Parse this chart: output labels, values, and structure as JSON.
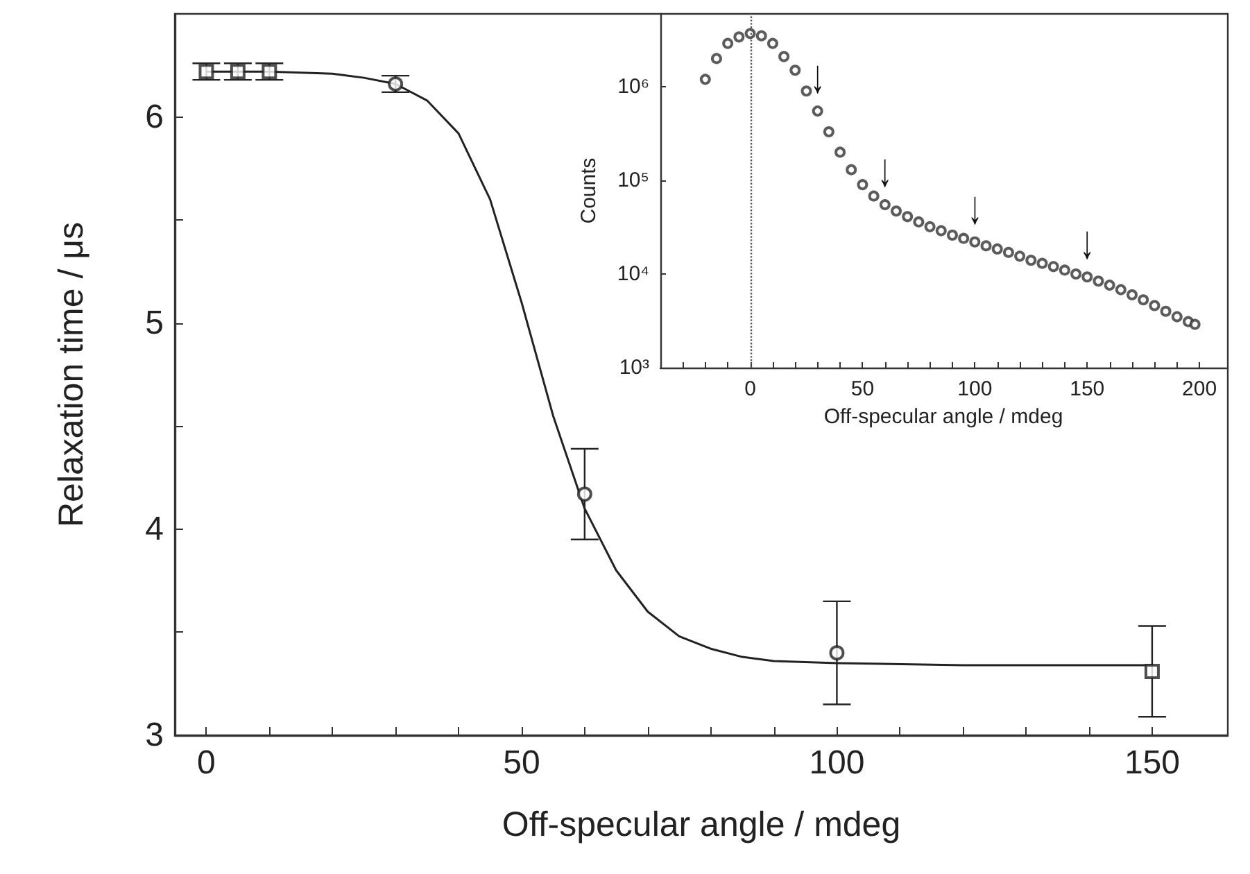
{
  "chart_data": [
    {
      "type": "scatter",
      "xlabel": "Off-specular angle / mdeg",
      "ylabel": "Relaxation time / μs",
      "xlim": [
        -5,
        162
      ],
      "ylim": [
        3,
        6.5
      ],
      "grid": false,
      "xticks": [
        0,
        {
          "value": 10,
          "label": null
        },
        {
          "value": 20,
          "label": null
        },
        {
          "value": 30,
          "label": null
        },
        {
          "value": 40,
          "label": null
        },
        50,
        {
          "value": 60,
          "label": null
        },
        {
          "value": 70,
          "label": null
        },
        {
          "value": 80,
          "label": null
        },
        {
          "value": 90,
          "label": null
        },
        100,
        {
          "value": 110,
          "label": null
        },
        {
          "value": 120,
          "label": null
        },
        {
          "value": 130,
          "label": null
        },
        {
          "value": 140,
          "label": null
        },
        150
      ],
      "yticks": [
        3,
        {
          "value": 3.5,
          "label": null
        },
        4,
        {
          "value": 4.5,
          "label": null
        },
        5,
        {
          "value": 5.5,
          "label": null
        },
        6
      ],
      "series": [
        {
          "x": [
            0,
            5,
            10,
            150
          ],
          "values": [
            6.22,
            6.22,
            6.22,
            3.31
          ],
          "errors": [
            0.04,
            0.04,
            0.04,
            0.22
          ],
          "marker": "square",
          "color": "#222222"
        },
        {
          "x": [
            30,
            60,
            100
          ],
          "values": [
            6.16,
            4.17,
            3.4
          ],
          "errors": [
            0.04,
            0.22,
            0.25
          ],
          "marker": "circle",
          "color": "#222222"
        },
        {
          "type": "line",
          "x": [
            0,
            10,
            20,
            25,
            30,
            35,
            40,
            45,
            50,
            55,
            60,
            65,
            70,
            75,
            80,
            85,
            90,
            100,
            120,
            150
          ],
          "values": [
            6.22,
            6.22,
            6.21,
            6.19,
            6.16,
            6.08,
            5.92,
            5.6,
            5.1,
            4.55,
            4.1,
            3.8,
            3.6,
            3.48,
            3.42,
            3.38,
            3.36,
            3.35,
            3.34,
            3.34
          ],
          "marker": "none",
          "line_style": "solid",
          "color": "#222222"
        }
      ]
    },
    {
      "type": "scatter",
      "xlabel": "Off-specular angle / mdeg",
      "ylabel": "Counts",
      "log": "y",
      "xlim": [
        -40,
        212
      ],
      "ylim": [
        1000,
        6000000
      ],
      "grid": false,
      "marker": "circle",
      "xticks": [
        {
          "value": -30,
          "label": null
        },
        {
          "value": -20,
          "label": null
        },
        {
          "value": -10,
          "label": null
        },
        0,
        {
          "value": 10,
          "label": null
        },
        {
          "value": 20,
          "label": null
        },
        {
          "value": 30,
          "label": null
        },
        {
          "value": 40,
          "label": null
        },
        50,
        {
          "value": 60,
          "label": null
        },
        {
          "value": 70,
          "label": null
        },
        {
          "value": 80,
          "label": null
        },
        {
          "value": 90,
          "label": null
        },
        100,
        {
          "value": 110,
          "label": null
        },
        {
          "value": 120,
          "label": null
        },
        {
          "value": 130,
          "label": null
        },
        {
          "value": 140,
          "label": null
        },
        150,
        {
          "value": 160,
          "label": null
        },
        {
          "value": 170,
          "label": null
        },
        {
          "value": 180,
          "label": null
        },
        {
          "value": 190,
          "label": null
        },
        200
      ],
      "yticks": [
        {
          "value": 1000,
          "label": "10³"
        },
        {
          "value": 10000,
          "label": "10⁴"
        },
        {
          "value": 100000,
          "label": "10⁵"
        },
        {
          "value": 1000000,
          "label": "10⁶"
        }
      ],
      "ref_lines": [
        {
          "axis": "x",
          "value": 0,
          "line_style": "dotted",
          "color": "#555555"
        }
      ],
      "annotations": [
        {
          "text": "↓",
          "x": 30,
          "y": 550000
        },
        {
          "text": "↓",
          "x": 60,
          "y": 55000
        },
        {
          "text": "↓",
          "x": 100,
          "y": 22000
        },
        {
          "text": "↓",
          "x": 150,
          "y": 9300
        }
      ],
      "series": [
        {
          "color": "#333333",
          "x": [
            -20,
            -15,
            -10,
            -5,
            0,
            5,
            10,
            15,
            20,
            25,
            30,
            35,
            40,
            45,
            50,
            55,
            60,
            65,
            70,
            75,
            80,
            85,
            90,
            95,
            100,
            105,
            110,
            115,
            120,
            125,
            130,
            135,
            140,
            145,
            150,
            155,
            160,
            165,
            170,
            175,
            180,
            185,
            190,
            195,
            198
          ],
          "values": [
            1200000,
            2000000,
            2900000,
            3400000,
            3700000,
            3500000,
            2900000,
            2100000,
            1500000,
            900000,
            550000,
            330000,
            200000,
            130000,
            90000,
            68000,
            55000,
            47000,
            41000,
            36000,
            32000,
            29000,
            26000,
            24000,
            22000,
            20000,
            18500,
            17000,
            15500,
            14000,
            13000,
            12000,
            11000,
            10000,
            9300,
            8400,
            7600,
            6800,
            6000,
            5300,
            4600,
            4000,
            3500,
            3100,
            2900
          ]
        }
      ]
    }
  ]
}
